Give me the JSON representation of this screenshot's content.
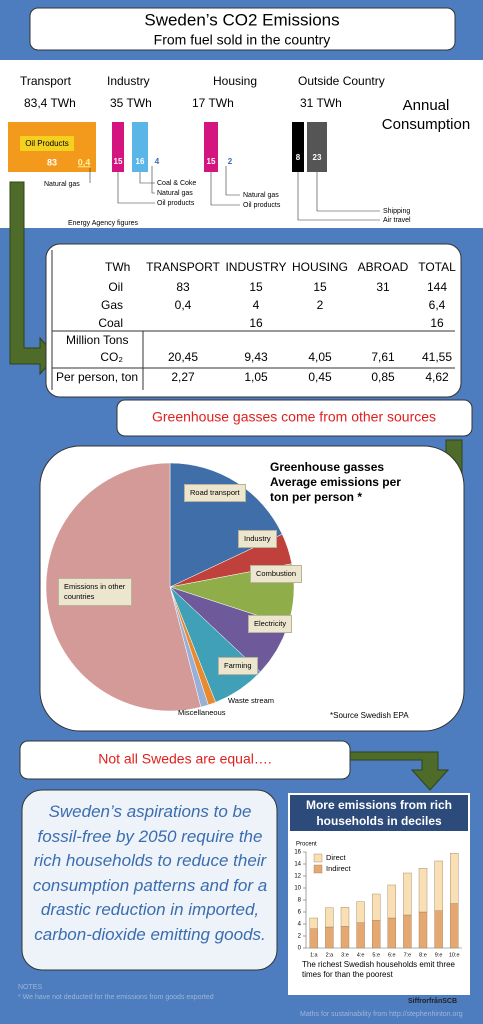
{
  "header": {
    "title": "Sweden’s  CO2 Emissions",
    "subtitle": "From fuel sold in the country"
  },
  "consumption": {
    "sectors": [
      {
        "name": "Transport",
        "total": "83,4 TWh"
      },
      {
        "name": "Industry",
        "total": "35 TWh"
      },
      {
        "name": "Housing",
        "total": "17 TWh"
      },
      {
        "name": "Outside Country",
        "total": "31 TWh"
      }
    ],
    "annual": "Annual Consumption",
    "transport": {
      "label": "Oil Products",
      "oil": "83",
      "gas": "0,4",
      "gas_note": "Natural gas"
    },
    "industry": {
      "oil": "15",
      "coal": "16",
      "gas": "4",
      "notes": [
        "Coal & Coke",
        "Natural gas",
        "Oil products"
      ]
    },
    "housing": {
      "oil": "15",
      "gas": "2",
      "notes": [
        "Natural gas",
        "Oil products"
      ]
    },
    "outside": {
      "shipping": "8",
      "air": "23",
      "notes": [
        "Shipping",
        "Air travel"
      ]
    },
    "source": "Energy Agency figures"
  },
  "table": {
    "header": [
      "TWh",
      "TRANSPORT",
      "INDUSTRY",
      "HOUSING",
      "ABROAD",
      "TOTAL"
    ],
    "rows": [
      {
        "label": "Oil",
        "cells": [
          "83",
          "15",
          "15",
          "31",
          "144"
        ]
      },
      {
        "label": "Gas",
        "cells": [
          "0,4",
          "4",
          "2",
          null,
          "6,4"
        ]
      },
      {
        "label": "Coal",
        "cells": [
          null,
          "16",
          null,
          null,
          "16"
        ]
      },
      {
        "label": "Million Tons",
        "sublabel": "CO₂",
        "cells": [
          "20,45",
          "9,43",
          "4,05",
          "7,61",
          "41,55"
        ]
      },
      {
        "label": "Per person, ton",
        "cells": [
          "2,27",
          "1,05",
          "0,45",
          "0,85",
          "4,62"
        ]
      }
    ]
  },
  "callout_1": "Greenhouse gasses come from other sources",
  "callout_2": "Not all Swedes are equal….",
  "statement": "Sweden’s aspirations to be fossil-free by 2050 require the rich households to reduce their consumption patterns and for a drastic reduction in imported, carbon-dioxide emitting goods.",
  "chart_data": [
    {
      "type": "pie",
      "title": "Greenhouse gasses",
      "subtitle": "Average emissions per ton per person *",
      "source": "*Source Swedish EPA",
      "categories": [
        "Road transport",
        "Industry",
        "Combustion",
        "Electricity",
        "Farming",
        "Waste stream",
        "Miscellaneous",
        "Emissions in other countries"
      ],
      "values": [
        18,
        4,
        8,
        7,
        7,
        1,
        1,
        54
      ],
      "colors": [
        "#3f6ea8",
        "#c0403c",
        "#8fae4a",
        "#6e5a9a",
        "#40a0b8",
        "#e88a30",
        "#98b0d8",
        "#d49a98"
      ]
    },
    {
      "type": "stacked_bar",
      "title": "More emissions from rich households in deciles",
      "ylabel": "Procent",
      "categories": [
        "1:a",
        "2:a",
        "3:e",
        "4:e",
        "5:e",
        "6:e",
        "7:e",
        "8:e",
        "9:e",
        "10:e"
      ],
      "series": [
        {
          "name": "Direct",
          "color": "#f9dfb4",
          "values": [
            1.8,
            3.2,
            3.2,
            3.5,
            4.4,
            5.5,
            7,
            7.3,
            8.3,
            8.4
          ]
        },
        {
          "name": "Indirect",
          "color": "#e5a870",
          "values": [
            3.2,
            3.5,
            3.6,
            4.2,
            4.6,
            5,
            5.5,
            6,
            6.2,
            7.4
          ]
        }
      ],
      "ylim": [
        0,
        16
      ],
      "yticks": [
        0,
        2,
        4,
        6,
        8,
        10,
        12,
        14,
        16
      ],
      "caption": "The richest Swedish households emit three times for than the poorest",
      "source": "SiffrorfrånSCB"
    }
  ],
  "notes": {
    "heading": "NOTES",
    "text": "*  We have not deducted for the emissions from goods exported",
    "credit": "Maths for sustainability from http://stephenhinton.org"
  }
}
